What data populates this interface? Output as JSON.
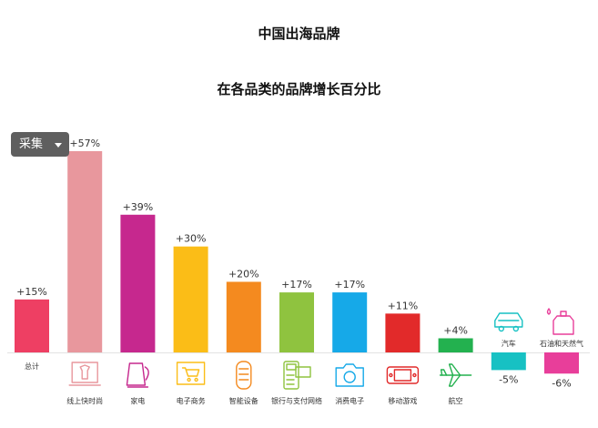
{
  "title": "中国出海品牌",
  "subtitle": "在各品类的品牌增长百分比",
  "collect_button": {
    "label": "采集"
  },
  "chart_data": {
    "type": "bar",
    "title": "中国出海品牌",
    "subtitle": "在各品类的品牌增长百分比",
    "xlabel": "",
    "ylabel": "",
    "ylim": [
      -6,
      57
    ],
    "grid": false,
    "legend": "none",
    "unit": "%",
    "categories": [
      "总计",
      "线上快时尚",
      "家电",
      "电子商务",
      "智能设备",
      "银行与支付网络",
      "消费电子",
      "移动游戏",
      "航空",
      "汽车",
      "石油和天然气"
    ],
    "values": [
      15,
      57,
      39,
      30,
      20,
      17,
      17,
      11,
      4,
      -5,
      -6
    ],
    "value_labels": [
      "+15%",
      "+57%",
      "+39%",
      "+30%",
      "+20%",
      "+17%",
      "+17%",
      "+11%",
      "+4%",
      "-5%",
      "-6%"
    ],
    "colors": [
      "#ee3f63",
      "#e8979d",
      "#c6288e",
      "#fbbd17",
      "#f48a1f",
      "#8fc33f",
      "#16a9e8",
      "#e22a2a",
      "#23b14f",
      "#17c1c3",
      "#e83e9a"
    ],
    "icons": [
      "",
      "laptop-shirt-icon",
      "kettle-icon",
      "shopping-cart-icon",
      "smart-speaker-icon",
      "card-terminal-icon",
      "camera-icon",
      "game-console-icon",
      "airplane-icon",
      "car-icon",
      "oil-bottle-icon"
    ]
  }
}
